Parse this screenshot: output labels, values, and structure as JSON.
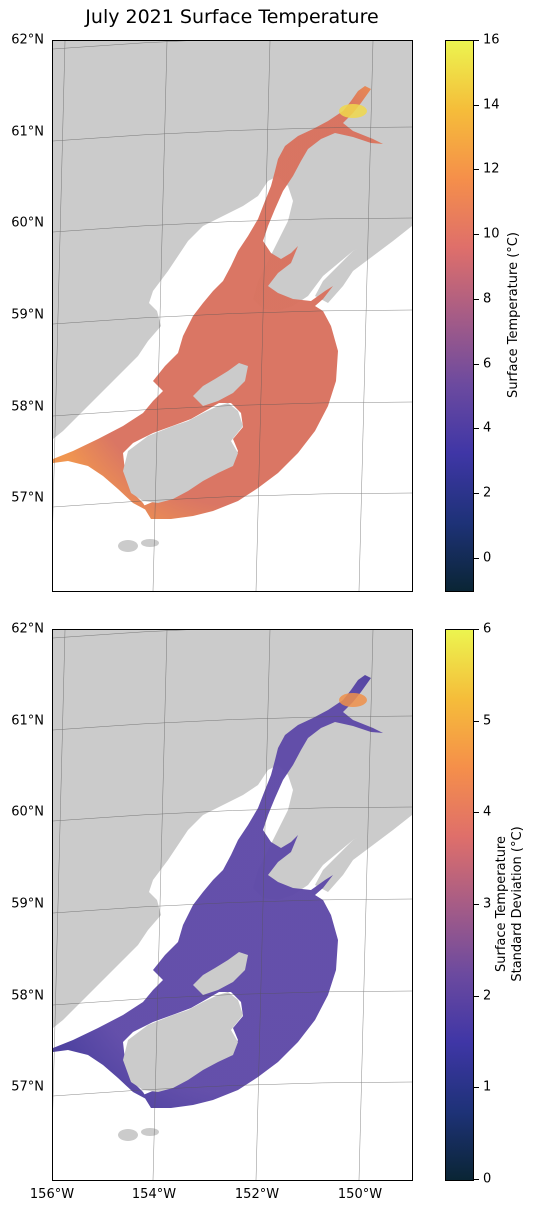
{
  "title": "July 2021 Surface Temperature",
  "colormap": [
    "#0a2535",
    "#1e3278",
    "#3f36a6",
    "#6c4a9f",
    "#a65c86",
    "#df6f6a",
    "#f58f4a",
    "#f5bd3a",
    "#ecf44f"
  ],
  "colors": {
    "land": "#cbcbcb",
    "ocean_background": "#ffffff",
    "grid": "#555555"
  },
  "lat_labels": [
    "62°N",
    "61°N",
    "60°N",
    "59°N",
    "58°N",
    "57°N"
  ],
  "lon_labels": [
    "156°W",
    "154°W",
    "152°W",
    "150°W"
  ],
  "panels": [
    {
      "variable": "Surface Temperature",
      "units": "°C",
      "colorbar_label": [
        "Surface Temperature (°C)"
      ],
      "colorbar_range": [
        -1,
        16
      ],
      "colorbar_ticks": [
        "0",
        "2",
        "4",
        "6",
        "8",
        "10",
        "12",
        "14",
        "16"
      ],
      "field_fill": "#d9725f",
      "field_edge": "#f0924a",
      "hotspot": "#f0d84c"
    },
    {
      "variable": "Surface Temperature Standard Deviation",
      "units": "°C",
      "colorbar_label": [
        "Surface Temperature",
        "Standard Deviation (°C)"
      ],
      "colorbar_range": [
        0,
        6
      ],
      "colorbar_ticks": [
        "0",
        "1",
        "2",
        "3",
        "4",
        "5",
        "6"
      ],
      "field_fill": "#5f4aa8",
      "field_edge": "#4a3d9e",
      "hotspot": "#f0904a"
    }
  ]
}
